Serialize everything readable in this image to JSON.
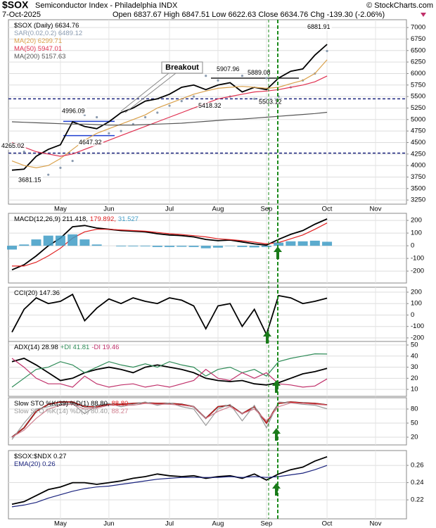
{
  "header": {
    "symbol": "$SOX",
    "name": "Semiconductor Index - Philadelphia INDX",
    "credit": "© StockCharts.com",
    "date": "7-Oct-2025",
    "quote": "Open 6837.67 High 6847.51 Low 6622.63 Close 6634.76 Chg -139.30 (-2.06%)"
  },
  "chart_data": [
    {
      "type": "line",
      "grid": true,
      "categories": [
        null,
        null,
        null,
        null,
        "May",
        null,
        null,
        null,
        "Jun",
        null,
        null,
        null,
        null,
        "Jul",
        null,
        null,
        null,
        "Aug",
        null,
        null,
        null,
        "Sep",
        null,
        null,
        null,
        null,
        "Oct",
        null,
        null,
        null,
        "Nov"
      ],
      "ylim": [
        3160,
        7170
      ],
      "yticks": [
        3250,
        3500,
        3750,
        4000,
        4250,
        4500,
        4750,
        5000,
        5250,
        5500,
        5750,
        6000,
        6250,
        6500,
        6750,
        7000
      ],
      "series": [
        {
          "name": "$SOX (Daily) 6634.76",
          "color": "#000000",
          "values": [
            3900,
            3920,
            4200,
            4350,
            4450,
            4950,
            4850,
            4800,
            4950,
            5150,
            5250,
            5400,
            5450,
            5550,
            5700,
            5750,
            5650,
            5750,
            5800,
            5600,
            5700,
            5650,
            5900,
            6050,
            6100,
            6400,
            6634.76,
            null,
            null,
            null,
            null
          ]
        },
        {
          "name": "SAR(0.02,0.2) 6489.12",
          "color": "#8a9bb0",
          "style": "dots",
          "values": [
            4400,
            4300,
            3700,
            3800,
            3950,
            4100,
            5100,
            5050,
            4700,
            4750,
            4900,
            5050,
            5150,
            5300,
            5400,
            5500,
            5950,
            5850,
            5500,
            5950,
            5450,
            5900,
            5500,
            5700,
            5850,
            6000,
            6489.12,
            null,
            null,
            null,
            null
          ]
        },
        {
          "name": "MA(20) 6299.71",
          "color": "#d9a04a",
          "values": [
            4100,
            4000,
            3950,
            4000,
            4150,
            4350,
            4550,
            4700,
            4800,
            4900,
            5000,
            5100,
            5250,
            5350,
            5450,
            5550,
            5620,
            5680,
            5700,
            5720,
            5700,
            5680,
            5700,
            5780,
            5850,
            6000,
            6299.71,
            null,
            null,
            null,
            null
          ]
        },
        {
          "name": "MA(50) 5947.01",
          "color": "#e03050",
          "values": [
            4500,
            4400,
            4300,
            4250,
            4200,
            4250,
            4350,
            4450,
            4550,
            4650,
            4750,
            4850,
            4950,
            5050,
            5150,
            5250,
            5350,
            5450,
            5500,
            5550,
            5600,
            5620,
            5650,
            5700,
            5750,
            5820,
            5947.01,
            null,
            null,
            null,
            null
          ]
        },
        {
          "name": "MA(200) 5157.63",
          "color": "#555555",
          "values": [
            4950,
            4940,
            4930,
            4920,
            4910,
            4900,
            4900,
            4890,
            4880,
            4880,
            4880,
            4890,
            4900,
            4910,
            4920,
            4940,
            4960,
            4980,
            5000,
            5010,
            5030,
            5050,
            5070,
            5090,
            5110,
            5130,
            5157.63,
            null,
            null,
            null,
            null
          ]
        }
      ],
      "annotations": [
        {
          "value": 4265.02,
          "label": "4265.02"
        },
        {
          "value": 3681.15,
          "label": "3681.15"
        },
        {
          "value": 4996.09,
          "label": "4996.09"
        },
        {
          "value": 4647.32,
          "label": "4647.32"
        },
        {
          "value": 5907.96,
          "label": "5907.96"
        },
        {
          "value": 5889.08,
          "label": "5889.08"
        },
        {
          "value": 5418.32,
          "label": "5418.32"
        },
        {
          "value": 5503.12,
          "label": "5503.12"
        },
        {
          "value": 6881.91,
          "label": "6881.91"
        }
      ],
      "callout": "Breakout",
      "hlines": [
        5450,
        4270
      ],
      "levels": [
        4960,
        4650,
        5900
      ]
    },
    {
      "type": "line",
      "grid": true,
      "ylim": [
        -294,
        256
      ],
      "yticks": [
        200,
        100,
        0,
        -100,
        -200
      ],
      "series": [
        {
          "name": "MACD(12,26,9) 211.418,",
          "color": "#000000",
          "values": [
            -190,
            -150,
            -80,
            0,
            60,
            150,
            160,
            140,
            130,
            120,
            115,
            110,
            95,
            85,
            80,
            70,
            50,
            40,
            45,
            30,
            15,
            5,
            50,
            90,
            120,
            170,
            211.418,
            null,
            null,
            null,
            null
          ]
        },
        {
          "name": "179.892,",
          "color": "#e02020",
          "values": [
            -160,
            -160,
            -130,
            -80,
            -20,
            60,
            110,
            130,
            130,
            125,
            120,
            115,
            105,
            95,
            88,
            80,
            70,
            55,
            48,
            40,
            28,
            15,
            25,
            55,
            85,
            130,
            179.892,
            null,
            null,
            null,
            null
          ]
        },
        {
          "name": "31.527",
          "color": "#3f9cc6",
          "style": "histogram",
          "values": [
            -30,
            10,
            50,
            80,
            80,
            90,
            50,
            10,
            0,
            -5,
            -5,
            -5,
            -10,
            -10,
            -8,
            -10,
            -20,
            -15,
            -3,
            -10,
            -13,
            -10,
            25,
            35,
            35,
            40,
            31.527,
            null,
            null,
            null,
            null
          ]
        }
      ]
    },
    {
      "type": "line",
      "grid": true,
      "ylim": [
        -231,
        243
      ],
      "yticks": [
        200,
        100,
        0,
        -100,
        -200
      ],
      "series": [
        {
          "name": "CCI(20) 147.36",
          "color": "#000000",
          "values": [
            -150,
            50,
            150,
            100,
            120,
            180,
            -50,
            60,
            140,
            100,
            150,
            120,
            100,
            150,
            130,
            80,
            -120,
            80,
            100,
            -100,
            50,
            -170,
            170,
            150,
            100,
            120,
            147.36,
            null,
            null,
            null,
            null
          ]
        }
      ]
    },
    {
      "type": "line",
      "grid": true,
      "ylim": [
        3.7,
        53.2
      ],
      "yticks": [
        50,
        40,
        30,
        20,
        10
      ],
      "series": [
        {
          "name": "ADX(14) 28.98",
          "color": "#000000",
          "values": [
            35,
            38,
            32,
            25,
            18,
            20,
            25,
            28,
            30,
            28,
            25,
            30,
            32,
            30,
            28,
            25,
            20,
            18,
            17,
            18,
            15,
            14,
            16,
            20,
            24,
            26,
            28.98,
            null,
            null,
            null,
            null
          ]
        },
        {
          "name": "+DI 41.81",
          "color": "#2e8b57",
          "values": [
            12,
            20,
            28,
            30,
            35,
            32,
            25,
            30,
            35,
            32,
            30,
            33,
            30,
            35,
            32,
            30,
            22,
            28,
            30,
            25,
            28,
            22,
            35,
            38,
            40,
            42,
            41.81,
            null,
            null,
            null,
            null
          ]
        },
        {
          "name": "-DI 19.46",
          "color": "#c0306a",
          "values": [
            38,
            30,
            20,
            15,
            15,
            12,
            22,
            15,
            12,
            14,
            15,
            12,
            14,
            12,
            15,
            18,
            28,
            20,
            18,
            25,
            20,
            25,
            15,
            14,
            12,
            13,
            19.46,
            null,
            null,
            null,
            null
          ]
        }
      ]
    },
    {
      "type": "line",
      "grid": true,
      "ylim": [
        3.5,
        104
      ],
      "yticks": [
        80,
        50,
        20
      ],
      "series": [
        {
          "name": "Slow STO %K(39) %D(1) 88.80,",
          "color": "#000000",
          "values": [
            20,
            40,
            75,
            90,
            95,
            95,
            85,
            85,
            90,
            90,
            92,
            93,
            92,
            92,
            90,
            85,
            60,
            85,
            88,
            70,
            85,
            50,
            92,
            95,
            93,
            92,
            88.8,
            null,
            null,
            null,
            null
          ]
        },
        {
          "name": "88.80",
          "color": "#e02020",
          "values": [
            20,
            40,
            75,
            90,
            95,
            95,
            85,
            85,
            90,
            90,
            92,
            93,
            92,
            92,
            90,
            85,
            60,
            85,
            88,
            70,
            85,
            50,
            92,
            95,
            93,
            92,
            88.8,
            null,
            null,
            null,
            null
          ]
        },
        {
          "name": "Slow STO %K(14) %D(3) 80.40,",
          "color": "#999999",
          "values": [
            15,
            50,
            80,
            85,
            90,
            92,
            70,
            88,
            92,
            85,
            90,
            95,
            88,
            93,
            85,
            80,
            45,
            80,
            90,
            55,
            88,
            40,
            95,
            93,
            90,
            88,
            80.4,
            null,
            null,
            null,
            null
          ]
        },
        {
          "name": "88.27",
          "color": "#d08090",
          "values": [
            20,
            35,
            60,
            80,
            88,
            90,
            80,
            82,
            88,
            88,
            88,
            92,
            90,
            90,
            88,
            85,
            60,
            75,
            85,
            70,
            80,
            55,
            85,
            93,
            92,
            90,
            88.27,
            null,
            null,
            null,
            null
          ]
        }
      ]
    },
    {
      "type": "line",
      "grid": true,
      "categories": [
        null,
        null,
        null,
        null,
        "May",
        null,
        null,
        null,
        "Jun",
        null,
        null,
        null,
        null,
        "Jul",
        null,
        null,
        null,
        "Aug",
        null,
        null,
        null,
        "Sep",
        null,
        null,
        null,
        null,
        "Oct",
        null,
        null,
        null,
        "Nov"
      ],
      "ylim": [
        0.198,
        0.2772
      ],
      "yticks": [
        0.26,
        0.24,
        0.22
      ],
      "series": [
        {
          "name": "$SOX:$NDX 0.27",
          "color": "#000000",
          "values": [
            0.215,
            0.218,
            0.225,
            0.232,
            0.235,
            0.24,
            0.24,
            0.238,
            0.24,
            0.242,
            0.245,
            0.247,
            0.25,
            0.248,
            0.247,
            0.248,
            0.245,
            0.247,
            0.248,
            0.245,
            0.25,
            0.243,
            0.25,
            0.255,
            0.258,
            0.265,
            0.27,
            null,
            null,
            null,
            null
          ]
        },
        {
          "name": "EMA(20) 0.26",
          "color": "#1a237e",
          "values": [
            0.212,
            0.214,
            0.217,
            0.222,
            0.226,
            0.23,
            0.233,
            0.235,
            0.236,
            0.238,
            0.24,
            0.242,
            0.244,
            0.245,
            0.246,
            0.246,
            0.246,
            0.246,
            0.247,
            0.246,
            0.247,
            0.246,
            0.247,
            0.249,
            0.251,
            0.255,
            0.26,
            null,
            null,
            null,
            null
          ]
        }
      ]
    }
  ]
}
